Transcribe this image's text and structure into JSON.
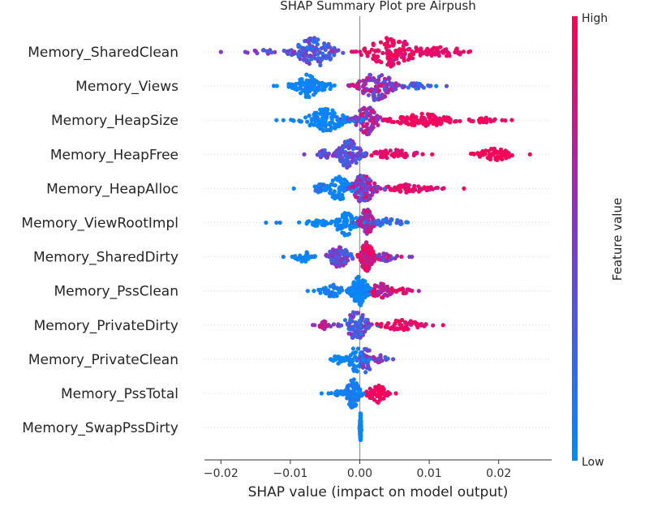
{
  "chart_data": {
    "type": "scatter",
    "subtype": "shap-beeswarm",
    "title": "SHAP Summary Plot pre Airpush",
    "xlabel": "SHAP value (impact on model output)",
    "xlim": [
      -0.022,
      0.027
    ],
    "xticks": [
      -0.02,
      -0.01,
      0.0,
      0.01,
      0.02
    ],
    "xtick_labels": [
      "−0.02",
      "−0.01",
      "0.00",
      "0.01",
      "0.02"
    ],
    "colorbar": {
      "title": "Feature value",
      "high_label": "High",
      "low_label": "Low",
      "low_color": "#008bfb",
      "high_color": "#ff0052",
      "mid_color": "#b400b4"
    },
    "features": [
      {
        "name": "Memory_SharedClean",
        "clusters": [
          {
            "center": -0.0065,
            "spread": 0.0035,
            "n": 110,
            "width": 1.0,
            "fvalue": 0.3,
            "fspread": 0.2
          },
          {
            "center": 0.0045,
            "spread": 0.0045,
            "n": 130,
            "width": 1.0,
            "fvalue": 0.92,
            "fspread": 0.12
          },
          {
            "center": 0.012,
            "spread": 0.004,
            "n": 40,
            "width": 0.35,
            "fvalue": 0.9,
            "fspread": 0.1
          },
          {
            "center": -0.013,
            "spread": 0.004,
            "n": 14,
            "width": 0.15,
            "fvalue": 0.45,
            "fspread": 0.2
          }
        ],
        "outliers": [
          {
            "x": -0.02,
            "f": 0.5
          },
          {
            "x": -0.0165,
            "f": 0.45
          }
        ]
      },
      {
        "name": "Memory_Views",
        "clusters": [
          {
            "center": -0.007,
            "spread": 0.004,
            "n": 70,
            "width": 0.4,
            "fvalue": 0.05,
            "fspread": 0.05
          },
          {
            "center": -0.0075,
            "spread": 0.002,
            "n": 50,
            "width": 0.8,
            "fvalue": 0.05,
            "fspread": 0.05
          },
          {
            "center": 0.0025,
            "spread": 0.003,
            "n": 120,
            "width": 1.0,
            "fvalue": 0.6,
            "fspread": 0.3
          },
          {
            "center": 0.008,
            "spread": 0.002,
            "n": 20,
            "width": 0.2,
            "fvalue": 0.3,
            "fspread": 0.2
          }
        ],
        "outliers": [
          {
            "x": 0.0125,
            "f": 0.4
          },
          {
            "x": 0.011,
            "f": 0.05
          },
          {
            "x": -0.0005,
            "f": 0.05
          }
        ]
      },
      {
        "name": "Memory_HeapSize",
        "clusters": [
          {
            "center": -0.005,
            "spread": 0.0035,
            "n": 120,
            "width": 0.8,
            "fvalue": 0.05,
            "fspread": 0.05
          },
          {
            "center": 0.001,
            "spread": 0.002,
            "n": 90,
            "width": 1.0,
            "fvalue": 0.65,
            "fspread": 0.3
          },
          {
            "center": 0.009,
            "spread": 0.005,
            "n": 100,
            "width": 0.45,
            "fvalue": 0.95,
            "fspread": 0.07
          },
          {
            "center": 0.018,
            "spread": 0.0025,
            "n": 30,
            "width": 0.18,
            "fvalue": 0.95,
            "fspread": 0.05
          }
        ],
        "outliers": [
          {
            "x": -0.012,
            "f": 0.05
          },
          {
            "x": -0.011,
            "f": 0.05
          },
          {
            "x": 0.0205,
            "f": 0.95
          }
        ]
      },
      {
        "name": "Memory_HeapFree",
        "clusters": [
          {
            "center": -0.0015,
            "spread": 0.002,
            "n": 120,
            "width": 1.0,
            "fvalue": 0.35,
            "fspread": 0.2
          },
          {
            "center": 0.005,
            "spread": 0.004,
            "n": 60,
            "width": 0.35,
            "fvalue": 0.9,
            "fspread": 0.1
          },
          {
            "center": 0.0195,
            "spread": 0.003,
            "n": 60,
            "width": 0.4,
            "fvalue": 0.97,
            "fspread": 0.03
          },
          {
            "center": -0.005,
            "spread": 0.0015,
            "n": 25,
            "width": 0.3,
            "fvalue": 0.4,
            "fspread": 0.2
          }
        ],
        "outliers": [
          {
            "x": -0.008,
            "f": 0.5
          },
          {
            "x": 0.0245,
            "f": 0.97
          }
        ]
      },
      {
        "name": "Memory_HeapAlloc",
        "clusters": [
          {
            "center": 0.0005,
            "spread": 0.002,
            "n": 120,
            "width": 1.0,
            "fvalue": 0.55,
            "fspread": 0.35
          },
          {
            "center": -0.003,
            "spread": 0.002,
            "n": 70,
            "width": 0.8,
            "fvalue": 0.05,
            "fspread": 0.05
          },
          {
            "center": 0.007,
            "spread": 0.004,
            "n": 70,
            "width": 0.3,
            "fvalue": 0.9,
            "fspread": 0.1
          },
          {
            "center": -0.0055,
            "spread": 0.0015,
            "n": 25,
            "width": 0.3,
            "fvalue": 0.1,
            "fspread": 0.1
          }
        ],
        "outliers": [
          {
            "x": -0.0095,
            "f": 0.05
          },
          {
            "x": 0.015,
            "f": 0.95
          }
        ]
      },
      {
        "name": "Memory_ViewRootImpl",
        "clusters": [
          {
            "center": -0.002,
            "spread": 0.002,
            "n": 70,
            "width": 0.9,
            "fvalue": 0.05,
            "fspread": 0.05
          },
          {
            "center": 0.001,
            "spread": 0.0012,
            "n": 80,
            "width": 1.0,
            "fvalue": 0.7,
            "fspread": 0.25
          },
          {
            "center": 0.004,
            "spread": 0.0025,
            "n": 40,
            "width": 0.3,
            "fvalue": 0.2,
            "fspread": 0.15
          },
          {
            "center": -0.006,
            "spread": 0.002,
            "n": 25,
            "width": 0.25,
            "fvalue": 0.05,
            "fspread": 0.05
          }
        ],
        "outliers": [
          {
            "x": -0.0135,
            "f": 0.05
          },
          {
            "x": -0.012,
            "f": 0.05
          },
          {
            "x": -0.0115,
            "f": 0.1
          }
        ]
      },
      {
        "name": "Memory_SharedDirty",
        "clusters": [
          {
            "center": -0.003,
            "spread": 0.002,
            "n": 80,
            "width": 0.7,
            "fvalue": 0.4,
            "fspread": 0.25
          },
          {
            "center": 0.001,
            "spread": 0.0012,
            "n": 120,
            "width": 1.0,
            "fvalue": 0.85,
            "fspread": 0.15
          },
          {
            "center": 0.004,
            "spread": 0.0025,
            "n": 40,
            "width": 0.3,
            "fvalue": 0.6,
            "fspread": 0.3
          },
          {
            "center": -0.008,
            "spread": 0.0015,
            "n": 30,
            "width": 0.35,
            "fvalue": 0.05,
            "fspread": 0.05
          }
        ],
        "outliers": [
          {
            "x": -0.011,
            "f": 0.1
          },
          {
            "x": 0.0075,
            "f": 0.5
          }
        ]
      },
      {
        "name": "Memory_PssClean",
        "clusters": [
          {
            "center": 0.0,
            "spread": 0.0015,
            "n": 120,
            "width": 1.0,
            "fvalue": 0.05,
            "fspread": 0.05
          },
          {
            "center": -0.004,
            "spread": 0.002,
            "n": 50,
            "width": 0.45,
            "fvalue": 0.1,
            "fspread": 0.08
          },
          {
            "center": 0.003,
            "spread": 0.002,
            "n": 60,
            "width": 0.5,
            "fvalue": 0.8,
            "fspread": 0.2
          },
          {
            "center": 0.0065,
            "spread": 0.0015,
            "n": 15,
            "width": 0.2,
            "fvalue": 0.9,
            "fspread": 0.1
          }
        ],
        "outliers": [
          {
            "x": -0.0075,
            "f": 0.05
          },
          {
            "x": 0.0085,
            "f": 0.6
          }
        ]
      },
      {
        "name": "Memory_PrivateDirty",
        "clusters": [
          {
            "center": -0.0005,
            "spread": 0.002,
            "n": 90,
            "width": 1.0,
            "fvalue": 0.35,
            "fspread": 0.25
          },
          {
            "center": 0.006,
            "spread": 0.0035,
            "n": 60,
            "width": 0.35,
            "fvalue": 0.92,
            "fspread": 0.08
          },
          {
            "center": -0.005,
            "spread": 0.0012,
            "n": 25,
            "width": 0.3,
            "fvalue": 0.75,
            "fspread": 0.25
          }
        ],
        "outliers": [
          {
            "x": 0.012,
            "f": 0.95
          },
          {
            "x": -0.0065,
            "f": 0.5
          }
        ]
      },
      {
        "name": "Memory_PrivateClean",
        "clusters": [
          {
            "center": -0.0005,
            "spread": 0.0015,
            "n": 60,
            "width": 0.9,
            "fvalue": 0.05,
            "fspread": 0.05
          },
          {
            "center": 0.001,
            "spread": 0.001,
            "n": 40,
            "width": 1.0,
            "fvalue": 0.5,
            "fspread": 0.3
          },
          {
            "center": -0.003,
            "spread": 0.0012,
            "n": 20,
            "width": 0.3,
            "fvalue": 0.05,
            "fspread": 0.05
          },
          {
            "center": 0.003,
            "spread": 0.001,
            "n": 15,
            "width": 0.3,
            "fvalue": 0.4,
            "fspread": 0.3
          }
        ],
        "outliers": [
          {
            "x": -0.0042,
            "f": 0.05
          },
          {
            "x": 0.0048,
            "f": 0.4
          }
        ]
      },
      {
        "name": "Memory_PssTotal",
        "clusters": [
          {
            "center": -0.001,
            "spread": 0.0012,
            "n": 90,
            "width": 1.0,
            "fvalue": 0.1,
            "fspread": 0.08
          },
          {
            "center": 0.0025,
            "spread": 0.0015,
            "n": 60,
            "width": 0.7,
            "fvalue": 0.95,
            "fspread": 0.05
          },
          {
            "center": -0.003,
            "spread": 0.001,
            "n": 15,
            "width": 0.2,
            "fvalue": 0.05,
            "fspread": 0.05
          }
        ],
        "outliers": [
          {
            "x": -0.0055,
            "f": 0.05
          },
          {
            "x": -0.0045,
            "f": 0.05
          },
          {
            "x": 0.0052,
            "f": 0.95
          }
        ]
      },
      {
        "name": "Memory_SwapPssDirty",
        "clusters": [
          {
            "center": 0.0001,
            "spread": 0.0001,
            "n": 90,
            "width": 1.0,
            "fvalue": 0.03,
            "fspread": 0.02
          }
        ],
        "outliers": []
      }
    ]
  }
}
